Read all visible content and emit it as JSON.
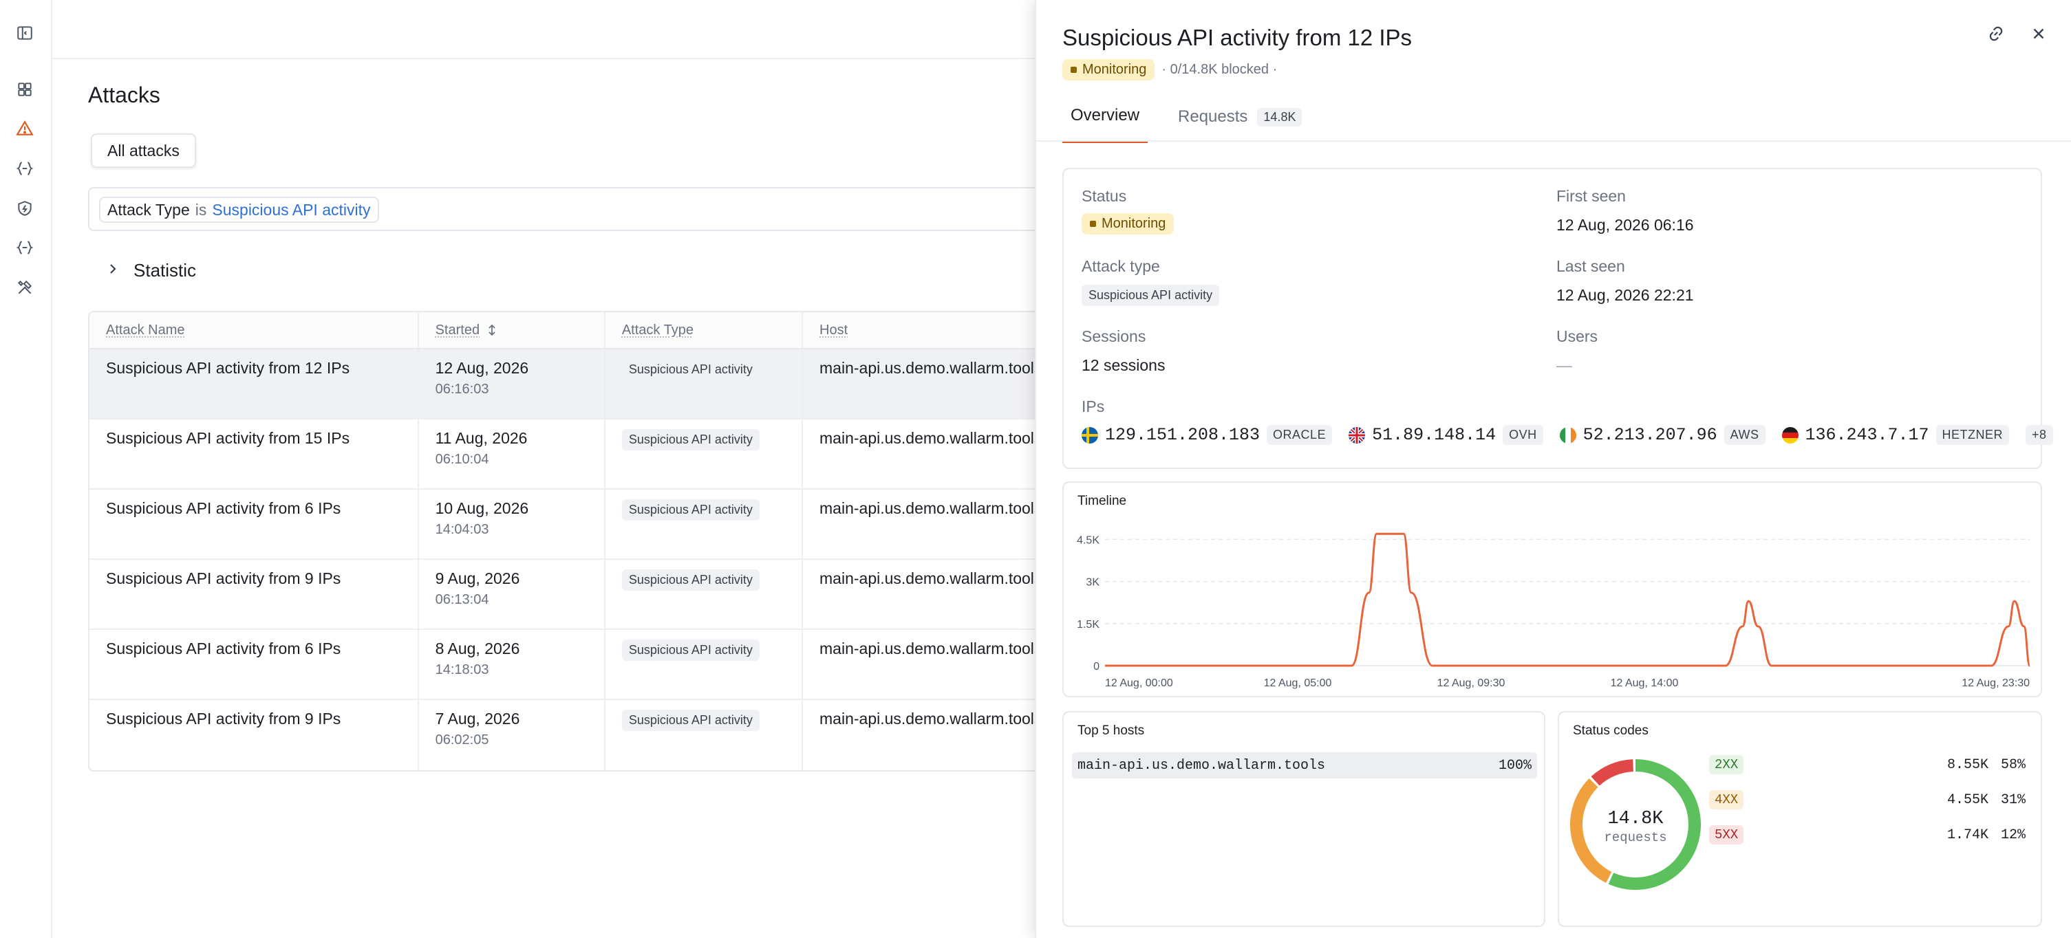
{
  "nav": {
    "icons": [
      "sidebar-toggle-icon",
      "dashboard-icon",
      "warning-icon",
      "api-icon",
      "shield-icon",
      "api-icon",
      "tools-icon"
    ]
  },
  "page": {
    "title": "Attacks",
    "segment_label": "All attacks",
    "filter": {
      "field": "Attack Type",
      "op": "is",
      "value": "Suspicious API activity"
    },
    "statistic_label": "Statistic"
  },
  "table": {
    "headers": {
      "name": "Attack Name",
      "started": "Started",
      "type": "Attack Type",
      "host": "Host"
    },
    "rows": [
      {
        "name": "Suspicious API activity from 12 IPs",
        "date": "12 Aug, 2026",
        "time": "06:16:03",
        "type": "Suspicious API activity",
        "host": "main-api.us.demo.wallarm.tools"
      },
      {
        "name": "Suspicious API activity from 15 IPs",
        "date": "11 Aug, 2026",
        "time": "06:10:04",
        "type": "Suspicious API activity",
        "host": "main-api.us.demo.wallarm.tools"
      },
      {
        "name": "Suspicious API activity from 6 IPs",
        "date": "10 Aug, 2026",
        "time": "14:04:03",
        "type": "Suspicious API activity",
        "host": "main-api.us.demo.wallarm.tools"
      },
      {
        "name": "Suspicious API activity from 9 IPs",
        "date": "9 Aug, 2026",
        "time": "06:13:04",
        "type": "Suspicious API activity",
        "host": "main-api.us.demo.wallarm.tools"
      },
      {
        "name": "Suspicious API activity from 6 IPs",
        "date": "8 Aug, 2026",
        "time": "14:18:03",
        "type": "Suspicious API activity",
        "host": "main-api.us.demo.wallarm.tools"
      },
      {
        "name": "Suspicious API activity from 9 IPs",
        "date": "7 Aug, 2026",
        "time": "06:02:05",
        "type": "Suspicious API activity",
        "host": "main-api.us.demo.wallarm.tools"
      }
    ]
  },
  "panel": {
    "title": "Suspicious API activity from 12 IPs",
    "status_badge": "Monitoring",
    "meta": "· 0/14.8K blocked ·",
    "tabs": {
      "overview": "Overview",
      "requests": "Requests",
      "requests_count": "14.8K"
    },
    "fields": {
      "status_label": "Status",
      "status_value": "Monitoring",
      "first_seen_label": "First seen",
      "first_seen_value": "12 Aug, 2026 06:16",
      "attack_type_label": "Attack type",
      "attack_type_value": "Suspicious API activity",
      "last_seen_label": "Last seen",
      "last_seen_value": "12 Aug, 2026 22:21",
      "sessions_label": "Sessions",
      "sessions_value": "12 sessions",
      "users_label": "Users",
      "users_value": "—",
      "ips_label": "IPs"
    },
    "ips": [
      {
        "ip": "129.151.208.183",
        "provider": "ORACLE"
      },
      {
        "ip": "51.89.148.14",
        "provider": "OVH"
      },
      {
        "ip": "52.213.207.96",
        "provider": "AWS"
      },
      {
        "ip": "136.243.7.17",
        "provider": "HETZNER"
      }
    ],
    "ips_more": "+8",
    "timeline_title": "Timeline",
    "hosts_title": "Top 5 hosts",
    "hosts": [
      {
        "host": "main-api.us.demo.wallarm.tools",
        "pct": "100%"
      }
    ],
    "status_title": "Status codes",
    "donut_value": "14.8K",
    "donut_label": "requests",
    "status_codes": [
      {
        "code": "2XX",
        "count": "8.55K",
        "pct": "58%"
      },
      {
        "code": "4XX",
        "count": "4.55K",
        "pct": "31%"
      },
      {
        "code": "5XX",
        "count": "1.74K",
        "pct": "12%"
      }
    ]
  },
  "chart_data": {
    "type": "line",
    "title": "Timeline",
    "x_tick_labels": [
      "12 Aug, 00:00",
      "12 Aug, 05:00",
      "12 Aug, 09:30",
      "12 Aug, 14:00",
      "12 Aug, 23:30"
    ],
    "y_tick_labels": [
      "0",
      "1.5K",
      "3K",
      "4.5K"
    ],
    "ylim": [
      0,
      5000
    ],
    "xlim_hours": [
      0,
      24
    ],
    "series": [
      {
        "color": "#e8643a",
        "x": [
          0,
          6.4,
          6.85,
          7.05,
          7.75,
          7.95,
          8.5,
          16.1,
          16.55,
          16.7,
          16.95,
          17.3,
          23.0,
          23.45,
          23.6,
          23.85,
          24.2
        ],
        "y": [
          0,
          0,
          2600,
          4700,
          4700,
          2600,
          0,
          0,
          1400,
          2300,
          1400,
          0,
          0,
          1400,
          2300,
          1400,
          0
        ]
      }
    ],
    "grid": true
  },
  "colors": {
    "accent": "#e25822",
    "line": "#e8643a",
    "ok": "#5cc15c",
    "warn": "#f0a03c",
    "err": "#e04848"
  }
}
